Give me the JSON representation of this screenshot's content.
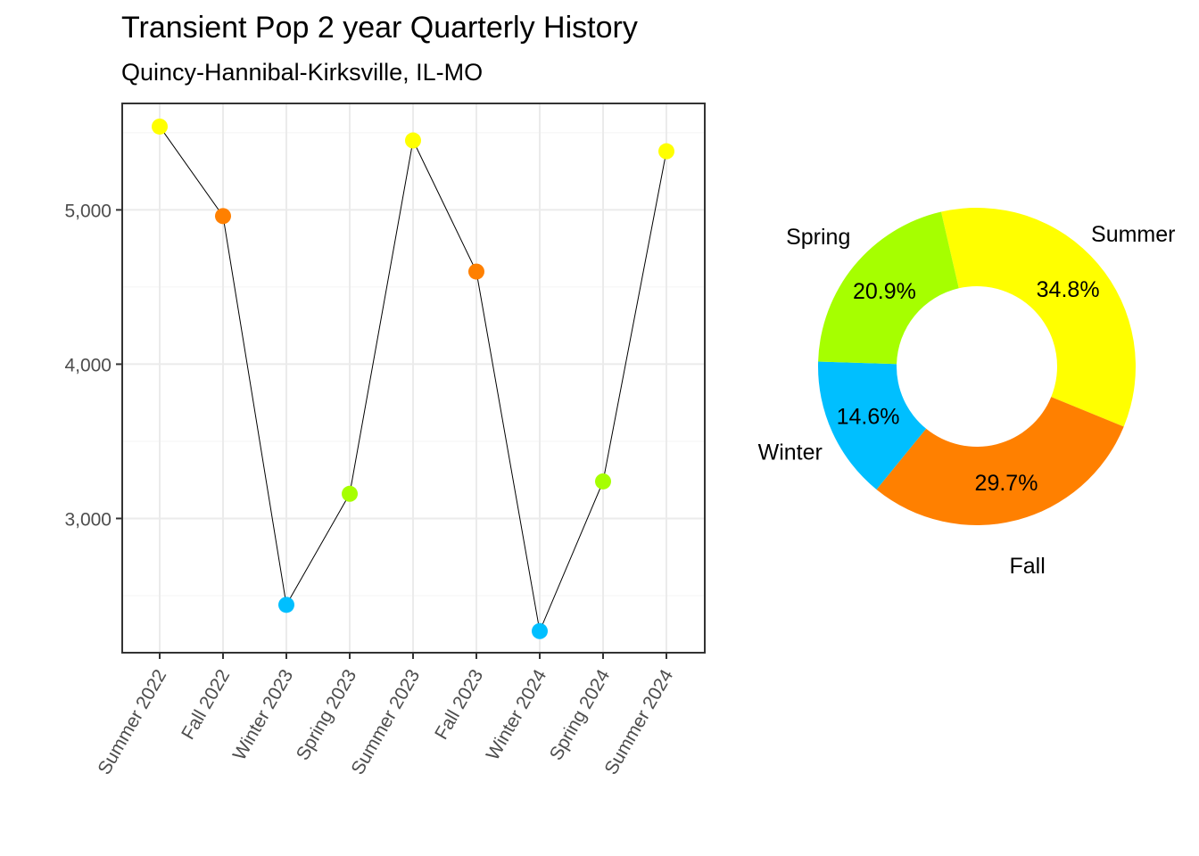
{
  "chart_data": [
    {
      "type": "line",
      "title": "Transient Pop 2 year Quarterly History",
      "subtitle": "Quincy-Hannibal-Kirksville, IL-MO",
      "xlabel": "",
      "ylabel": "",
      "categories": [
        "Summer 2022",
        "Fall 2022",
        "Winter 2023",
        "Spring 2023",
        "Summer 2023",
        "Fall 2023",
        "Winter 2024",
        "Spring 2024",
        "Summer 2024"
      ],
      "values": [
        5540,
        4960,
        2440,
        3160,
        5450,
        4600,
        2270,
        3240,
        5380
      ],
      "point_seasons": [
        "Summer",
        "Fall",
        "Winter",
        "Spring",
        "Summer",
        "Fall",
        "Winter",
        "Spring",
        "Summer"
      ],
      "ylim": [
        2130,
        5690
      ],
      "yticks": [
        3000,
        4000,
        5000
      ],
      "ytick_labels": [
        "3,000",
        "4,000",
        "5,000"
      ],
      "grid": true
    },
    {
      "type": "pie",
      "style": "donut",
      "slices": [
        {
          "label": "Summer",
          "value": 34.8,
          "value_label": "34.8%"
        },
        {
          "label": "Fall",
          "value": 29.7,
          "value_label": "29.7%"
        },
        {
          "label": "Winter",
          "value": 14.6,
          "value_label": "14.6%"
        },
        {
          "label": "Spring",
          "value": 20.9,
          "value_label": "20.9%"
        }
      ]
    }
  ],
  "colors": {
    "Summer": "#FFFF00",
    "Fall": "#FF8000",
    "Winter": "#00BFFF",
    "Spring": "#A6FF00",
    "line": "#000000",
    "grid_major": "#EBEBEB",
    "grid_minor": "#F4F4F4",
    "axis_text": "#4D4D4D",
    "panel_border": "#333333"
  }
}
